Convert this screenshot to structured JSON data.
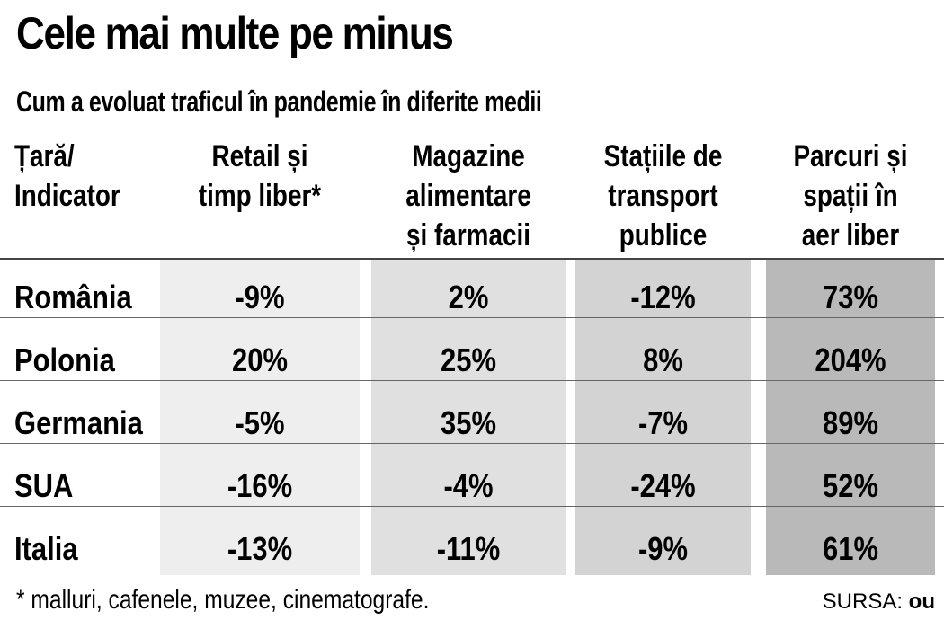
{
  "title": "Cele mai multe pe minus",
  "subtitle": "Cum a evoluat traficul în pandemie în diferite medii",
  "footnote": "* malluri, cafenele, muzee, cinematografe.",
  "source": {
    "label": "SURSA:",
    "logo_text": "ou"
  },
  "colors": {
    "col_backgrounds": [
      "#eeeeee",
      "#e0e0e0",
      "#d3d3d3",
      "#b9b9b9"
    ],
    "rules": "#555555"
  },
  "chart_data": {
    "type": "table",
    "corner_header": [
      "Țară/",
      "Indicator"
    ],
    "columns": [
      {
        "lines": [
          "Retail și",
          "timp liber*"
        ]
      },
      {
        "lines": [
          "Magazine",
          "alimentare",
          "și farmacii"
        ]
      },
      {
        "lines": [
          "Stațiile de",
          "transport",
          "publice"
        ]
      },
      {
        "lines": [
          "Parcuri și",
          "spații în",
          "aer liber"
        ]
      }
    ],
    "rows": [
      {
        "label": "România",
        "values": [
          "-9%",
          "2%",
          "-12%",
          "73%"
        ]
      },
      {
        "label": "Polonia",
        "values": [
          "20%",
          "25%",
          "8%",
          "204%"
        ]
      },
      {
        "label": "Germania",
        "values": [
          "-5%",
          "35%",
          "-7%",
          "89%"
        ]
      },
      {
        "label": "SUA",
        "values": [
          "-16%",
          "-4%",
          "-24%",
          "52%"
        ]
      },
      {
        "label": "Italia",
        "values": [
          "-13%",
          "-11%",
          "-9%",
          "61%"
        ]
      }
    ]
  }
}
